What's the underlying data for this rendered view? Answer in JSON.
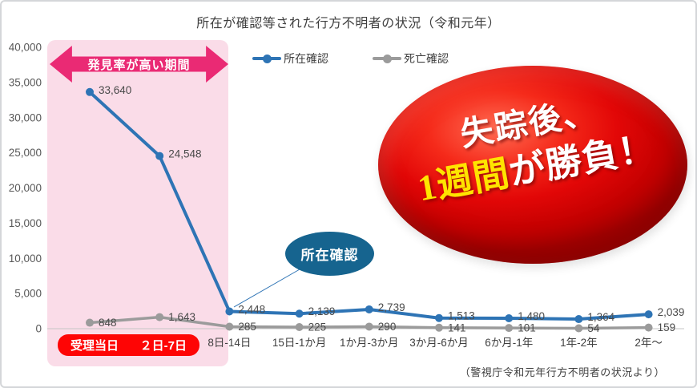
{
  "header": {
    "title": "所在が確認等された行方不明者の状況（令和元年）"
  },
  "highlight": {
    "band_label": "発見率が高い期間"
  },
  "callout": {
    "label": "所在確認"
  },
  "badge": {
    "line1": "失踪後、",
    "line2_highlight": "1週間",
    "line2_rest": "が勝負！"
  },
  "source": "（警視庁令和元年行方不明者の状況より）",
  "colors": {
    "series_blue": "#2e74b5",
    "series_gray": "#9b9b9b",
    "pink_band": "#fadce8",
    "arrow_magenta": "#ea2a74",
    "red_pill": "#fe0505",
    "callout_blue": "#16648f",
    "badge_red": "#e20707",
    "badge_yellow": "#ffe400"
  },
  "chart_data": {
    "type": "line",
    "categories": [
      "受理当日",
      "２日-7日",
      "8日-14日",
      "15日-1か月",
      "1か月-3か月",
      "3か月-6か月",
      "6か月-1年",
      "1年-2年",
      "2年～"
    ],
    "series": [
      {
        "name": "所在確認",
        "color": "#2e74b5",
        "values": [
          33640,
          24548,
          2448,
          2139,
          2739,
          1513,
          1480,
          1364,
          2039
        ]
      },
      {
        "name": "死亡確認",
        "color": "#9b9b9b",
        "values": [
          848,
          1643,
          285,
          225,
          290,
          141,
          101,
          54,
          159
        ]
      }
    ],
    "title": "所在が確認等された行方不明者の状況（令和元年）",
    "xlabel": "",
    "ylabel": "",
    "ylim": [
      0,
      40000
    ],
    "ytick_step": 5000,
    "grid": false,
    "legend_position": "top",
    "annotations": [
      "発見率が高い期間",
      "所在確認",
      "失踪後、1週間が勝負！"
    ]
  }
}
